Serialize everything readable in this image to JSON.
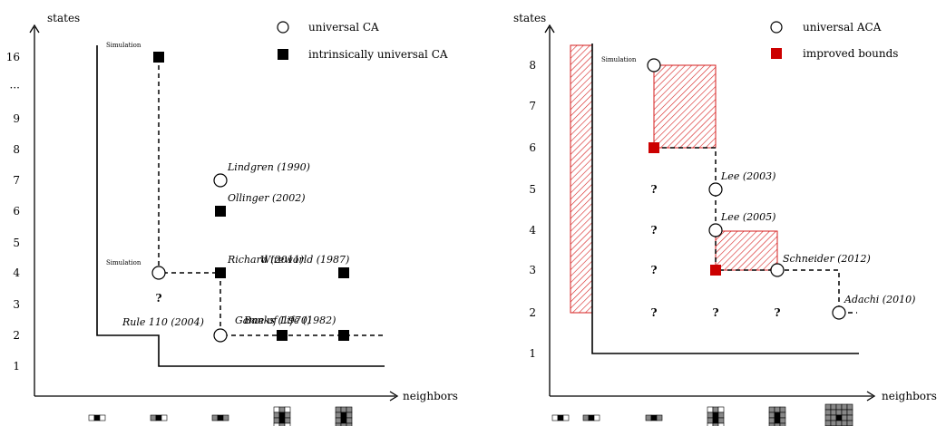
{
  "chart_data": [
    {
      "type": "scatter",
      "ylabel": "states",
      "xlabel": "neighbors",
      "y_ticks": [
        "1",
        "2",
        "3",
        "4",
        "5",
        "6",
        "7",
        "8",
        "9",
        "···",
        "16"
      ],
      "x_neighbors": [
        2,
        3,
        4,
        5,
        9
      ],
      "legend": [
        {
          "marker": "circle",
          "label": "universal CA"
        },
        {
          "marker": "square",
          "label": "intrinsically universal CA"
        }
      ],
      "points": [
        {
          "neighbors": 4,
          "states": 7,
          "marker": "circle",
          "label": "Lindgren (1990)"
        },
        {
          "neighbors": 4,
          "states": 6,
          "marker": "square",
          "label": "Ollinger (2002)"
        },
        {
          "neighbors": 4,
          "states": 4,
          "marker": "square",
          "label": "Richard (2011)"
        },
        {
          "neighbors": 9,
          "states": 4,
          "marker": "square",
          "label": "Wireworld (1987)"
        },
        {
          "neighbors": 3,
          "states": 4,
          "marker": "circle",
          "label": "Simulation"
        },
        {
          "neighbors": 3,
          "states": 16,
          "marker": "square",
          "label": "Simulation"
        },
        {
          "neighbors": 4,
          "states": 2,
          "marker": "circle",
          "label": "Rule 110 (2004)"
        },
        {
          "neighbors": 5,
          "states": 2,
          "marker": "square",
          "label": "Banks (1970)"
        },
        {
          "neighbors": 9,
          "states": 2,
          "marker": "square",
          "label": "Game of Life (1982)"
        }
      ],
      "unknown": [
        {
          "neighbors": 3,
          "states": 3,
          "text": "?"
        }
      ]
    },
    {
      "type": "scatter",
      "ylabel": "states",
      "xlabel": "neighbors",
      "y_ticks": [
        "1",
        "2",
        "3",
        "4",
        "5",
        "6",
        "7",
        "8"
      ],
      "x_neighbors": [
        2,
        3,
        4,
        5,
        9
      ],
      "legend": [
        {
          "marker": "circle",
          "label": "universal ACA"
        },
        {
          "marker": "square",
          "label": "improved bounds",
          "color": "#cc0000"
        }
      ],
      "points": [
        {
          "neighbors": 4,
          "states": 8,
          "marker": "circle",
          "label": "Simulation"
        },
        {
          "neighbors": 4,
          "states": 6,
          "marker": "square",
          "label": ""
        },
        {
          "neighbors": 5,
          "states": 5,
          "marker": "circle",
          "label": "Lee (2003)"
        },
        {
          "neighbors": 5,
          "states": 4,
          "marker": "circle",
          "label": "Lee (2005)"
        },
        {
          "neighbors": 5,
          "states": 3,
          "marker": "square",
          "label": ""
        },
        {
          "neighbors": 9,
          "states": 3,
          "marker": "circle",
          "label": "Schneider (2012)"
        },
        {
          "neighbors": "9+",
          "states": 2,
          "marker": "circle",
          "label": "Adachi (2010)"
        }
      ],
      "unknown": [
        {
          "neighbors": 4,
          "states": 5,
          "text": "?"
        },
        {
          "neighbors": 4,
          "states": 4,
          "text": "?"
        },
        {
          "neighbors": 4,
          "states": 3,
          "text": "?"
        },
        {
          "neighbors": 4,
          "states": 2,
          "text": "?"
        },
        {
          "neighbors": 5,
          "states": 2,
          "text": "?"
        },
        {
          "neighbors": 9,
          "states": 2,
          "text": "?"
        }
      ],
      "accent_color": "#cc0000"
    }
  ]
}
